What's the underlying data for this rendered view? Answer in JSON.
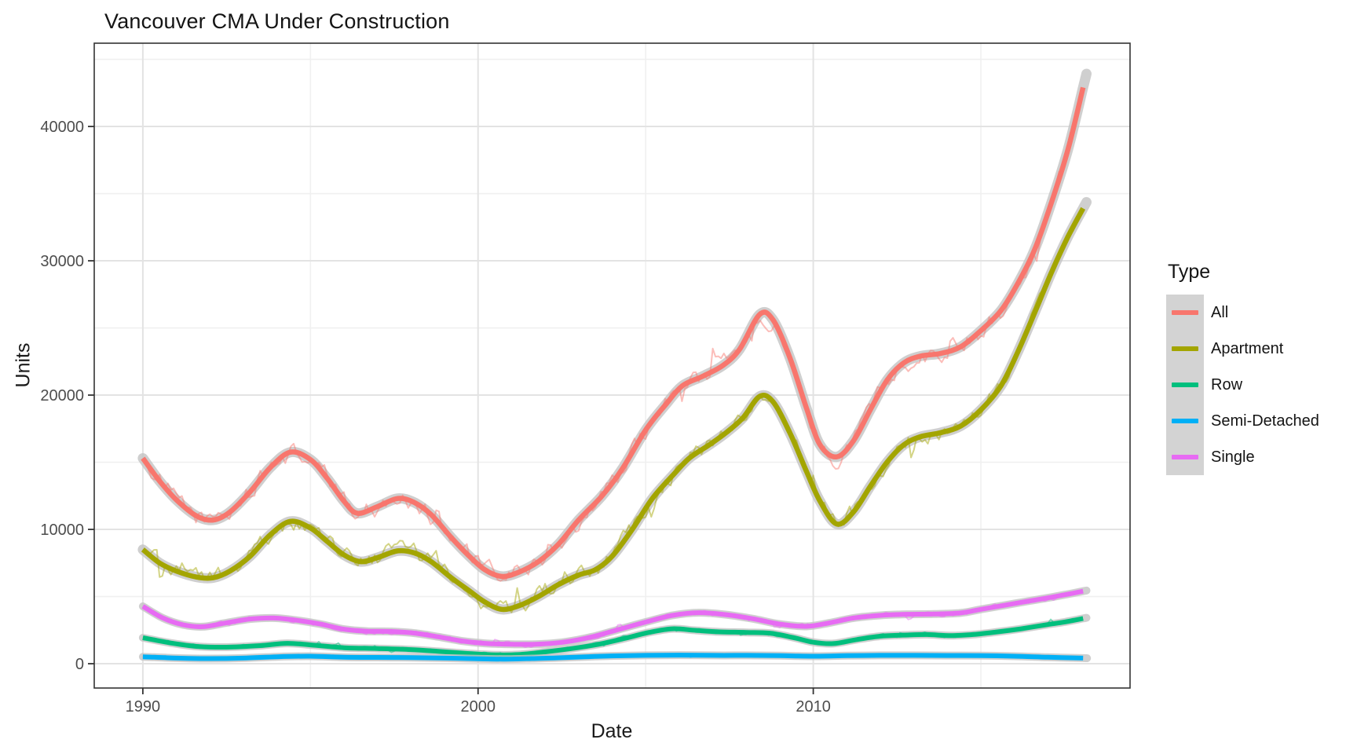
{
  "title": "Vancouver CMA Under Construction",
  "chart_data": {
    "type": "line",
    "title": "Vancouver CMA Under Construction",
    "xlabel": "Date",
    "ylabel": "Units",
    "legend_title": "Type",
    "legend_position": "right",
    "grid": true,
    "x_range": [
      1988.55,
      2019.45
    ],
    "y_range": [
      -1810,
      46200
    ],
    "x_ticks": [
      1990,
      2000,
      2010
    ],
    "x_minor": [
      1995,
      2005,
      2015
    ],
    "y_ticks": [
      0,
      10000,
      20000,
      30000,
      40000
    ],
    "y_minor": [
      5000,
      15000,
      25000,
      35000,
      45000
    ],
    "panel_border_color": "#333333",
    "grid_major_color": "#e3e3e3",
    "grid_minor_color": "#f0f0f0",
    "tick_label_color": "#4d4d4d",
    "series": [
      {
        "name": "All",
        "color": "#F8766D",
        "raw_amp": 780,
        "points": [
          [
            1990.0,
            15300
          ],
          [
            1990.5,
            13600
          ],
          [
            1991.0,
            12200
          ],
          [
            1991.6,
            11000
          ],
          [
            1992.1,
            10700
          ],
          [
            1992.6,
            11300
          ],
          [
            1993.2,
            12800
          ],
          [
            1993.8,
            14600
          ],
          [
            1994.4,
            15750
          ],
          [
            1995.0,
            15200
          ],
          [
            1995.5,
            13800
          ],
          [
            1996.0,
            12100
          ],
          [
            1996.4,
            11200
          ],
          [
            1997.0,
            11700
          ],
          [
            1997.6,
            12300
          ],
          [
            1998.1,
            12000
          ],
          [
            1998.6,
            11100
          ],
          [
            1999.2,
            9400
          ],
          [
            1999.7,
            8100
          ],
          [
            2000.2,
            7000
          ],
          [
            2000.7,
            6500
          ],
          [
            2001.2,
            6800
          ],
          [
            2001.8,
            7600
          ],
          [
            2002.4,
            8900
          ],
          [
            2003.0,
            10700
          ],
          [
            2003.7,
            12500
          ],
          [
            2004.3,
            14500
          ],
          [
            2005.0,
            17400
          ],
          [
            2005.6,
            19300
          ],
          [
            2006.1,
            20700
          ],
          [
            2006.7,
            21400
          ],
          [
            2007.3,
            22200
          ],
          [
            2007.8,
            23400
          ],
          [
            2008.4,
            26000
          ],
          [
            2008.8,
            25600
          ],
          [
            2009.3,
            22800
          ],
          [
            2009.8,
            19000
          ],
          [
            2010.2,
            16300
          ],
          [
            2010.7,
            15400
          ],
          [
            2011.2,
            16600
          ],
          [
            2011.7,
            18900
          ],
          [
            2012.2,
            21100
          ],
          [
            2012.7,
            22400
          ],
          [
            2013.2,
            22900
          ],
          [
            2013.8,
            23100
          ],
          [
            2014.4,
            23600
          ],
          [
            2015.0,
            24800
          ],
          [
            2015.6,
            26300
          ],
          [
            2016.1,
            28300
          ],
          [
            2016.6,
            30800
          ],
          [
            2017.1,
            34300
          ],
          [
            2017.6,
            38300
          ],
          [
            2018.05,
            42900
          ]
        ]
      },
      {
        "name": "Apartment",
        "color": "#A3A500",
        "raw_amp": 700,
        "points": [
          [
            1990.0,
            8500
          ],
          [
            1990.5,
            7500
          ],
          [
            1991.0,
            6900
          ],
          [
            1991.6,
            6450
          ],
          [
            1992.1,
            6400
          ],
          [
            1992.6,
            6900
          ],
          [
            1993.2,
            8000
          ],
          [
            1993.8,
            9600
          ],
          [
            1994.4,
            10600
          ],
          [
            1995.0,
            10100
          ],
          [
            1995.5,
            9100
          ],
          [
            1996.0,
            8100
          ],
          [
            1996.5,
            7600
          ],
          [
            1997.0,
            7900
          ],
          [
            1997.6,
            8400
          ],
          [
            1998.1,
            8250
          ],
          [
            1998.6,
            7600
          ],
          [
            1999.2,
            6400
          ],
          [
            1999.7,
            5500
          ],
          [
            2000.2,
            4600
          ],
          [
            2000.7,
            4050
          ],
          [
            2001.2,
            4300
          ],
          [
            2001.8,
            5000
          ],
          [
            2002.4,
            5900
          ],
          [
            2003.0,
            6600
          ],
          [
            2003.5,
            7000
          ],
          [
            2004.0,
            8000
          ],
          [
            2004.6,
            10000
          ],
          [
            2005.2,
            12300
          ],
          [
            2005.8,
            14000
          ],
          [
            2006.3,
            15300
          ],
          [
            2006.9,
            16300
          ],
          [
            2007.4,
            17200
          ],
          [
            2007.9,
            18300
          ],
          [
            2008.4,
            19900
          ],
          [
            2008.8,
            19500
          ],
          [
            2009.3,
            17200
          ],
          [
            2009.8,
            14300
          ],
          [
            2010.2,
            12100
          ],
          [
            2010.7,
            10400
          ],
          [
            2011.2,
            11300
          ],
          [
            2011.7,
            13200
          ],
          [
            2012.2,
            15000
          ],
          [
            2012.7,
            16300
          ],
          [
            2013.2,
            16900
          ],
          [
            2013.8,
            17200
          ],
          [
            2014.4,
            17700
          ],
          [
            2015.0,
            18900
          ],
          [
            2015.6,
            20700
          ],
          [
            2016.1,
            23200
          ],
          [
            2016.6,
            26100
          ],
          [
            2017.1,
            29100
          ],
          [
            2017.6,
            31800
          ],
          [
            2018.05,
            33900
          ]
        ]
      },
      {
        "name": "Row",
        "color": "#00BF7D",
        "raw_amp": 150,
        "points": [
          [
            1990.0,
            1930
          ],
          [
            1990.8,
            1560
          ],
          [
            1991.6,
            1290
          ],
          [
            1992.5,
            1230
          ],
          [
            1993.5,
            1350
          ],
          [
            1994.3,
            1520
          ],
          [
            1995.0,
            1400
          ],
          [
            1996.0,
            1190
          ],
          [
            1997.0,
            1130
          ],
          [
            1998.0,
            1050
          ],
          [
            1998.8,
            920
          ],
          [
            1999.6,
            780
          ],
          [
            2000.4,
            670
          ],
          [
            2001.2,
            680
          ],
          [
            2002.0,
            880
          ],
          [
            2002.8,
            1130
          ],
          [
            2003.6,
            1450
          ],
          [
            2004.4,
            1900
          ],
          [
            2005.1,
            2330
          ],
          [
            2005.8,
            2600
          ],
          [
            2006.5,
            2480
          ],
          [
            2007.2,
            2370
          ],
          [
            2008.0,
            2330
          ],
          [
            2008.7,
            2280
          ],
          [
            2009.4,
            1950
          ],
          [
            2010.0,
            1600
          ],
          [
            2010.6,
            1500
          ],
          [
            2011.3,
            1800
          ],
          [
            2012.0,
            2050
          ],
          [
            2012.7,
            2130
          ],
          [
            2013.4,
            2170
          ],
          [
            2014.1,
            2090
          ],
          [
            2014.8,
            2180
          ],
          [
            2015.5,
            2370
          ],
          [
            2016.2,
            2600
          ],
          [
            2016.9,
            2880
          ],
          [
            2017.5,
            3110
          ],
          [
            2018.05,
            3370
          ]
        ]
      },
      {
        "name": "Semi-Detached",
        "color": "#00B0F6",
        "raw_amp": 65,
        "points": [
          [
            1990.0,
            520
          ],
          [
            1991.0,
            420
          ],
          [
            1992.0,
            380
          ],
          [
            1993.0,
            420
          ],
          [
            1994.0,
            520
          ],
          [
            1995.0,
            560
          ],
          [
            1996.0,
            480
          ],
          [
            1997.0,
            470
          ],
          [
            1998.0,
            460
          ],
          [
            1999.0,
            420
          ],
          [
            2000.0,
            370
          ],
          [
            2000.8,
            340
          ],
          [
            2001.6,
            380
          ],
          [
            2002.4,
            440
          ],
          [
            2003.2,
            520
          ],
          [
            2004.0,
            580
          ],
          [
            2005.0,
            620
          ],
          [
            2006.0,
            640
          ],
          [
            2007.0,
            620
          ],
          [
            2008.0,
            620
          ],
          [
            2009.0,
            600
          ],
          [
            2010.0,
            560
          ],
          [
            2011.0,
            600
          ],
          [
            2012.0,
            620
          ],
          [
            2013.0,
            620
          ],
          [
            2014.0,
            610
          ],
          [
            2015.0,
            600
          ],
          [
            2016.0,
            560
          ],
          [
            2017.0,
            480
          ],
          [
            2018.05,
            420
          ]
        ]
      },
      {
        "name": "Single",
        "color": "#E76BF3",
        "raw_amp": 210,
        "points": [
          [
            1990.0,
            4270
          ],
          [
            1990.6,
            3400
          ],
          [
            1991.2,
            2900
          ],
          [
            1991.8,
            2760
          ],
          [
            1992.5,
            3050
          ],
          [
            1993.2,
            3330
          ],
          [
            1993.9,
            3400
          ],
          [
            1994.6,
            3230
          ],
          [
            1995.3,
            2950
          ],
          [
            1996.0,
            2570
          ],
          [
            1996.7,
            2420
          ],
          [
            1997.4,
            2400
          ],
          [
            1998.1,
            2280
          ],
          [
            1998.8,
            2010
          ],
          [
            1999.5,
            1700
          ],
          [
            2000.2,
            1520
          ],
          [
            2001.0,
            1450
          ],
          [
            2001.8,
            1460
          ],
          [
            2002.6,
            1620
          ],
          [
            2003.4,
            2000
          ],
          [
            2004.2,
            2550
          ],
          [
            2005.0,
            3100
          ],
          [
            2005.8,
            3600
          ],
          [
            2006.6,
            3800
          ],
          [
            2007.4,
            3650
          ],
          [
            2008.2,
            3350
          ],
          [
            2009.0,
            2950
          ],
          [
            2009.8,
            2780
          ],
          [
            2010.5,
            3050
          ],
          [
            2011.2,
            3400
          ],
          [
            2012.0,
            3600
          ],
          [
            2012.8,
            3680
          ],
          [
            2013.6,
            3700
          ],
          [
            2014.4,
            3780
          ],
          [
            2015.0,
            4050
          ],
          [
            2015.7,
            4350
          ],
          [
            2016.4,
            4650
          ],
          [
            2017.1,
            4950
          ],
          [
            2017.6,
            5180
          ],
          [
            2018.05,
            5400
          ]
        ]
      }
    ]
  }
}
